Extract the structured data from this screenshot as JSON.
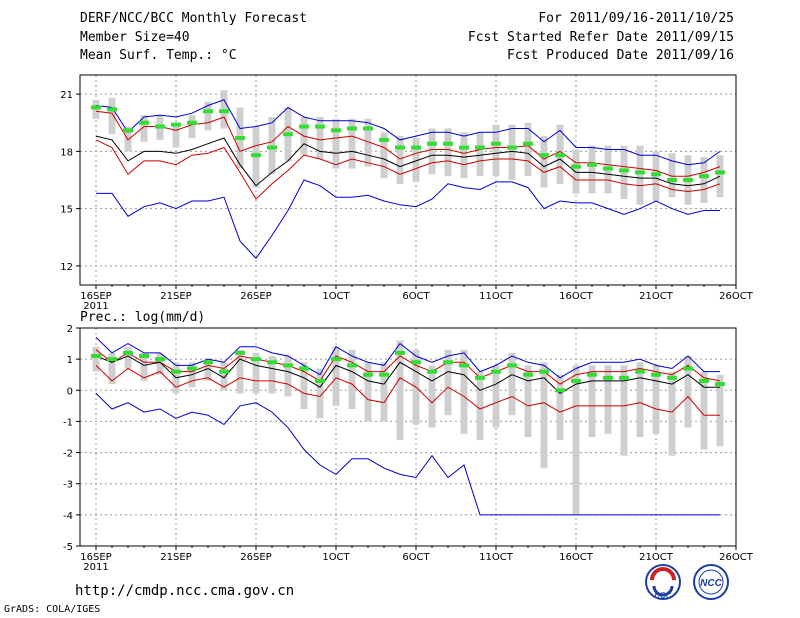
{
  "header": {
    "title": "DERF/NCC/BCC Monthly Forecast",
    "member_size": "Member Size=40",
    "forecast_period": "For 2011/09/16-2011/10/25",
    "started_refer_date": "Fcst Started Refer Date 2011/09/15",
    "produced_date": "Fcst Produced Date 2011/09/16"
  },
  "footer": {
    "url": "http://cmdp.ncc.cma.gov.cn",
    "grads_credit": "GrADS: COLA/IGES",
    "logo_left_text": "BCC",
    "logo_right_text": "NCC"
  },
  "colors": {
    "max_min": "#0000cc",
    "spread": "#cc0000",
    "mean": "#000000",
    "box": "#cfcfcf",
    "marker": "#33dd33",
    "grid": "#999999"
  },
  "chart_data": [
    {
      "type": "line",
      "panel": "temperature",
      "title": "Mean Surf. Temp.: °C",
      "xlabel": "",
      "ylabel": "",
      "x_days": [
        0,
        1,
        2,
        3,
        4,
        5,
        6,
        7,
        8,
        9,
        10,
        11,
        12,
        13,
        14,
        15,
        16,
        17,
        18,
        19,
        20,
        21,
        22,
        23,
        24,
        25,
        26,
        27,
        28,
        29,
        30,
        31,
        32,
        33,
        34,
        35,
        36,
        37,
        38,
        39
      ],
      "x_tick_labels": [
        "16SEP\n2011",
        "21SEP",
        "26SEP",
        "1OCT",
        "6OCT",
        "11OCT",
        "16OCT",
        "21OCT",
        "26OCT"
      ],
      "x_tick_days": [
        0,
        5,
        10,
        15,
        20,
        25,
        30,
        35,
        40
      ],
      "xlim": [
        -1,
        40
      ],
      "ylim": [
        11,
        22
      ],
      "y_ticks": [
        12,
        15,
        18,
        21
      ],
      "series": [
        {
          "name": "max",
          "color": "#0000cc",
          "values": [
            20.4,
            20.3,
            19.0,
            19.8,
            19.9,
            19.8,
            20.0,
            20.4,
            20.7,
            19.2,
            19.3,
            19.5,
            20.3,
            19.8,
            19.6,
            19.6,
            19.6,
            19.5,
            19.2,
            18.6,
            18.8,
            19.0,
            19.0,
            18.8,
            19.0,
            19.0,
            19.2,
            19.2,
            18.5,
            19.1,
            18.2,
            18.2,
            18.1,
            18.1,
            17.8,
            17.8,
            17.5,
            17.3,
            17.4,
            18.0
          ]
        },
        {
          "name": "upper",
          "color": "#cc0000",
          "values": [
            20.1,
            20.0,
            18.6,
            19.3,
            19.3,
            19.1,
            19.4,
            19.5,
            19.8,
            18.0,
            18.3,
            18.5,
            19.3,
            18.8,
            18.6,
            18.7,
            18.8,
            18.5,
            18.2,
            17.6,
            17.9,
            18.1,
            18.1,
            17.9,
            18.1,
            18.2,
            18.2,
            18.3,
            17.6,
            18.0,
            17.4,
            17.4,
            17.3,
            17.2,
            17.1,
            17.0,
            16.7,
            16.7,
            16.9,
            17.2
          ]
        },
        {
          "name": "mean",
          "color": "#000000",
          "values": [
            18.8,
            18.6,
            17.5,
            18.0,
            18.0,
            17.9,
            18.1,
            18.4,
            18.7,
            17.3,
            16.2,
            16.9,
            17.5,
            18.4,
            18.0,
            17.9,
            18.0,
            17.8,
            17.6,
            17.2,
            17.5,
            17.8,
            17.8,
            17.7,
            17.8,
            17.9,
            18.0,
            17.9,
            17.2,
            17.6,
            16.9,
            16.9,
            16.8,
            16.7,
            16.6,
            16.6,
            16.3,
            16.2,
            16.3,
            16.7
          ]
        },
        {
          "name": "lower",
          "color": "#cc0000",
          "values": [
            18.6,
            18.2,
            16.8,
            17.5,
            17.5,
            17.3,
            17.8,
            17.9,
            18.2,
            16.9,
            15.5,
            16.3,
            17.0,
            17.8,
            17.6,
            17.3,
            17.6,
            17.4,
            17.2,
            16.8,
            17.1,
            17.4,
            17.5,
            17.3,
            17.5,
            17.6,
            17.6,
            17.5,
            16.9,
            17.2,
            16.5,
            16.5,
            16.5,
            16.3,
            16.2,
            16.3,
            16.0,
            15.9,
            16.0,
            16.3
          ]
        },
        {
          "name": "min",
          "color": "#0000cc",
          "values": [
            15.8,
            15.8,
            14.6,
            15.1,
            15.3,
            15.0,
            15.4,
            15.4,
            15.6,
            13.3,
            12.4,
            13.6,
            14.9,
            16.5,
            16.2,
            15.6,
            15.6,
            15.7,
            15.4,
            15.2,
            15.1,
            15.5,
            16.3,
            16.1,
            16.0,
            16.4,
            16.4,
            16.1,
            15.0,
            15.4,
            15.3,
            15.3,
            15.0,
            14.7,
            15.0,
            15.4,
            15.0,
            14.7,
            14.9,
            14.9
          ]
        },
        {
          "name": "marker",
          "color": "#33dd33",
          "values": [
            20.3,
            20.2,
            19.1,
            19.5,
            19.3,
            19.4,
            19.5,
            20.1,
            20.1,
            18.7,
            17.8,
            18.2,
            18.9,
            19.3,
            19.3,
            19.1,
            19.2,
            19.2,
            18.6,
            18.2,
            18.2,
            18.4,
            18.4,
            18.2,
            18.2,
            18.4,
            18.2,
            18.4,
            17.8,
            17.8,
            17.2,
            17.3,
            17.1,
            17.0,
            16.9,
            16.8,
            16.5,
            16.5,
            16.7,
            16.9
          ]
        }
      ],
      "box_high": [
        20.7,
        20.8,
        19.3,
        19.9,
        19.9,
        19.5,
        19.9,
        20.6,
        21.2,
        20.3,
        19.3,
        19.8,
        20.3,
        19.8,
        19.8,
        19.7,
        19.7,
        19.7,
        19.0,
        18.8,
        18.7,
        19.2,
        19.2,
        19.0,
        19.0,
        19.4,
        19.4,
        19.5,
        18.8,
        19.4,
        18.1,
        18.3,
        18.3,
        18.3,
        18.3,
        18.0,
        17.9,
        17.8,
        17.7,
        17.8
      ],
      "box_low": [
        19.7,
        18.9,
        18.0,
        18.5,
        18.6,
        18.2,
        18.7,
        19.1,
        19.2,
        17.1,
        16.1,
        16.8,
        17.5,
        17.8,
        17.6,
        17.1,
        17.1,
        17.2,
        16.6,
        16.3,
        16.4,
        16.8,
        16.7,
        16.6,
        16.7,
        16.7,
        16.5,
        16.7,
        16.1,
        16.3,
        15.8,
        15.8,
        15.8,
        15.5,
        15.2,
        15.4,
        15.6,
        15.2,
        15.3,
        15.6
      ]
    },
    {
      "type": "line",
      "panel": "precipitation",
      "title": "Prec.: log(mm/d)",
      "xlabel": "",
      "ylabel": "",
      "x_days": [
        0,
        1,
        2,
        3,
        4,
        5,
        6,
        7,
        8,
        9,
        10,
        11,
        12,
        13,
        14,
        15,
        16,
        17,
        18,
        19,
        20,
        21,
        22,
        23,
        24,
        25,
        26,
        27,
        28,
        29,
        30,
        31,
        32,
        33,
        34,
        35,
        36,
        37,
        38,
        39
      ],
      "x_tick_labels": [
        "16SEP\n2011",
        "21SEP",
        "26SEP",
        "1OCT",
        "6OCT",
        "11OCT",
        "16OCT",
        "21OCT",
        "26OCT"
      ],
      "x_tick_days": [
        0,
        5,
        10,
        15,
        20,
        25,
        30,
        35,
        40
      ],
      "xlim": [
        -1,
        40
      ],
      "ylim": [
        -5,
        2
      ],
      "y_ticks": [
        -5,
        -4,
        -3,
        -2,
        -1,
        0,
        1,
        2
      ],
      "series": [
        {
          "name": "max",
          "color": "#0000cc",
          "values": [
            1.7,
            1.2,
            1.5,
            1.2,
            1.2,
            0.8,
            0.8,
            1.0,
            0.9,
            1.4,
            1.4,
            1.2,
            1.1,
            0.8,
            0.5,
            1.4,
            1.1,
            0.9,
            0.8,
            1.5,
            1.1,
            0.9,
            1.1,
            1.2,
            0.6,
            0.8,
            1.1,
            0.9,
            0.8,
            0.4,
            0.7,
            0.9,
            0.9,
            0.9,
            1.0,
            0.8,
            0.7,
            1.1,
            0.6,
            0.6
          ]
        },
        {
          "name": "upper",
          "color": "#cc0000",
          "values": [
            1.3,
            0.9,
            1.2,
            0.9,
            0.9,
            0.6,
            0.6,
            0.8,
            0.7,
            1.1,
            1.0,
            0.9,
            0.8,
            0.6,
            0.3,
            1.1,
            0.9,
            0.6,
            0.6,
            1.1,
            0.8,
            0.6,
            0.9,
            0.9,
            0.4,
            0.6,
            0.8,
            0.6,
            0.6,
            0.2,
            0.5,
            0.6,
            0.6,
            0.6,
            0.7,
            0.6,
            0.5,
            0.8,
            0.4,
            0.3
          ]
        },
        {
          "name": "mean",
          "color": "#000000",
          "values": [
            1.1,
            0.9,
            1.1,
            0.8,
            0.9,
            0.4,
            0.5,
            0.7,
            0.4,
            1.0,
            0.8,
            0.7,
            0.6,
            0.4,
            0.1,
            0.8,
            0.6,
            0.3,
            0.2,
            0.9,
            0.6,
            0.3,
            0.6,
            0.5,
            0.0,
            0.2,
            0.5,
            0.3,
            0.4,
            -0.1,
            0.2,
            0.3,
            0.3,
            0.3,
            0.4,
            0.3,
            0.2,
            0.5,
            0.1,
            0.1
          ]
        },
        {
          "name": "lower",
          "color": "#cc0000",
          "values": [
            0.8,
            0.3,
            0.7,
            0.4,
            0.6,
            0.1,
            0.3,
            0.4,
            0.1,
            0.4,
            0.3,
            0.3,
            0.2,
            -0.1,
            -0.2,
            0.4,
            0.2,
            -0.3,
            -0.4,
            0.4,
            0.1,
            -0.4,
            0.1,
            -0.2,
            -0.6,
            -0.4,
            -0.2,
            -0.5,
            -0.4,
            -0.7,
            -0.5,
            -0.5,
            -0.5,
            -0.5,
            -0.4,
            -0.6,
            -0.7,
            -0.2,
            -0.8,
            -0.8
          ]
        },
        {
          "name": "min",
          "color": "#0000cc",
          "values": [
            -0.1,
            -0.6,
            -0.4,
            -0.7,
            -0.6,
            -0.9,
            -0.7,
            -0.8,
            -1.1,
            -0.5,
            -0.4,
            -0.7,
            -1.2,
            -1.9,
            -2.4,
            -2.7,
            -2.2,
            -2.2,
            -2.5,
            -2.7,
            -2.8,
            -2.1,
            -2.8,
            -2.4,
            -4.0,
            -4.0,
            -4.0,
            -4.0,
            -4.0,
            -4.0,
            -4.0,
            -4.0,
            -4.0,
            -4.0,
            -4.0,
            -4.0,
            -4.0,
            -4.0,
            -4.0,
            -4.0
          ]
        },
        {
          "name": "marker",
          "color": "#33dd33",
          "values": [
            1.1,
            1.0,
            1.2,
            1.1,
            1.0,
            0.6,
            0.7,
            0.9,
            0.6,
            1.2,
            1.0,
            0.9,
            0.8,
            0.7,
            0.3,
            1.0,
            0.8,
            0.5,
            0.5,
            1.2,
            0.9,
            0.6,
            0.9,
            0.8,
            0.4,
            0.6,
            0.8,
            0.5,
            0.6,
            0.0,
            0.3,
            0.5,
            0.4,
            0.4,
            0.6,
            0.5,
            0.4,
            0.7,
            0.3,
            0.2
          ]
        }
      ],
      "box_high": [
        1.4,
        1.2,
        1.4,
        1.2,
        1.2,
        0.9,
        0.9,
        1.0,
        0.9,
        1.3,
        1.2,
        1.1,
        1.1,
        0.9,
        0.7,
        1.4,
        1.3,
        0.9,
        0.9,
        1.6,
        1.3,
        0.8,
        1.3,
        1.3,
        0.6,
        0.8,
        1.2,
        0.8,
        0.9,
        0.5,
        0.8,
        0.8,
        0.8,
        0.8,
        0.9,
        0.8,
        0.6,
        1.1,
        0.6,
        0.5
      ],
      "box_low": [
        0.6,
        0.2,
        0.7,
        0.3,
        0.5,
        -0.1,
        0.1,
        0.3,
        0.0,
        -0.1,
        -0.1,
        -0.1,
        -0.2,
        -0.6,
        -0.9,
        -0.5,
        -0.6,
        -1.0,
        -1.0,
        -1.6,
        -1.1,
        -1.2,
        -0.8,
        -1.4,
        -1.6,
        -1.2,
        -0.8,
        -1.5,
        -2.5,
        -1.6,
        -4.0,
        -1.5,
        -1.4,
        -2.1,
        -1.5,
        -1.4,
        -2.1,
        -1.2,
        -1.9,
        -1.8
      ]
    }
  ]
}
